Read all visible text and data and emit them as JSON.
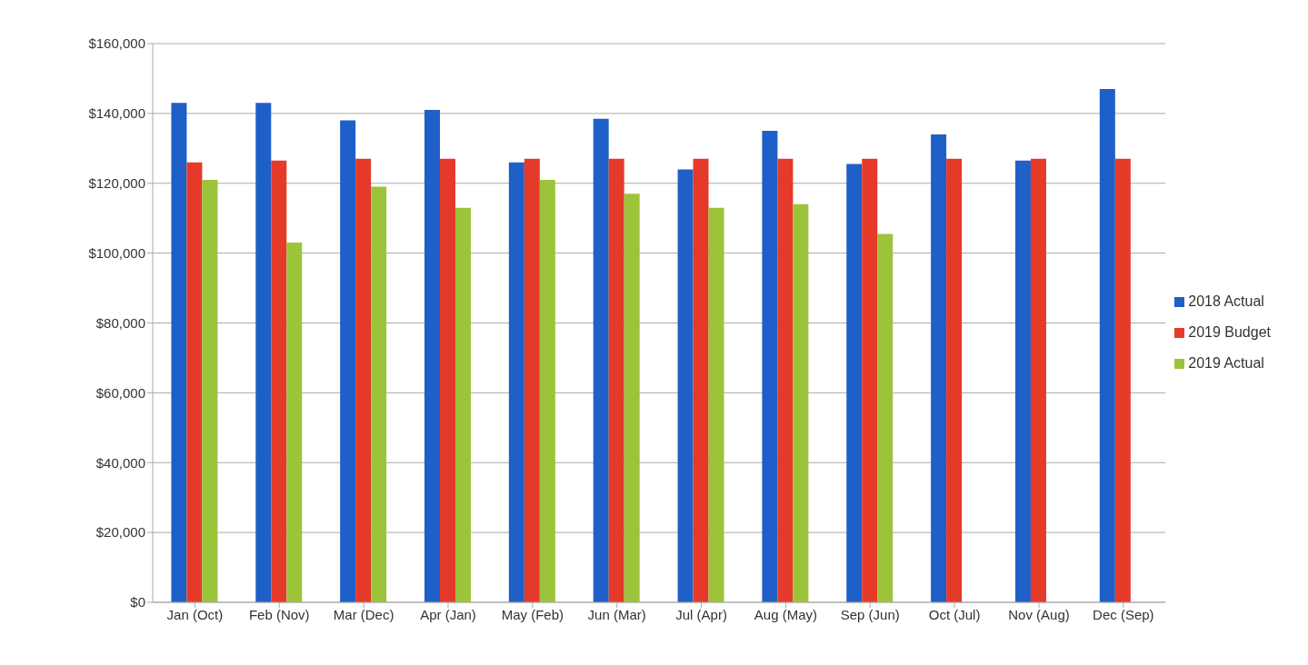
{
  "chart_data": {
    "type": "bar",
    "categories": [
      "Jan (Oct)",
      "Feb (Nov)",
      "Mar (Dec)",
      "Apr (Jan)",
      "May (Feb)",
      "Jun (Mar)",
      "Jul (Apr)",
      "Aug (May)",
      "Sep (Jun)",
      "Oct (Jul)",
      "Nov (Aug)",
      "Dec (Sep)"
    ],
    "series": [
      {
        "name": "2018 Actual",
        "color": "#1f5fc8",
        "values": [
          143000,
          143000,
          138000,
          141000,
          126000,
          138500,
          124000,
          135000,
          125500,
          134000,
          126500,
          147000
        ]
      },
      {
        "name": "2019 Budget",
        "color": "#e53a2a",
        "values": [
          126000,
          126500,
          127000,
          127000,
          127000,
          127000,
          127000,
          127000,
          127000,
          127000,
          127000,
          127000
        ]
      },
      {
        "name": "2019 Actual",
        "color": "#9cc43a",
        "values": [
          121000,
          103000,
          119000,
          113000,
          121000,
          117000,
          113000,
          114000,
          105500,
          null,
          null,
          null
        ]
      }
    ],
    "ylim": [
      0,
      160000
    ],
    "yticks": [
      {
        "value": 0,
        "label": "$0"
      },
      {
        "value": 20000,
        "label": "$20,000"
      },
      {
        "value": 40000,
        "label": "$40,000"
      },
      {
        "value": 60000,
        "label": "$60,000"
      },
      {
        "value": 80000,
        "label": "$80,000"
      },
      {
        "value": 100000,
        "label": "$100,000"
      },
      {
        "value": 120000,
        "label": "$120,000"
      },
      {
        "value": 140000,
        "label": "$140,000"
      },
      {
        "value": 160000,
        "label": "$160,000"
      }
    ],
    "grid": "y",
    "legend": "right"
  }
}
